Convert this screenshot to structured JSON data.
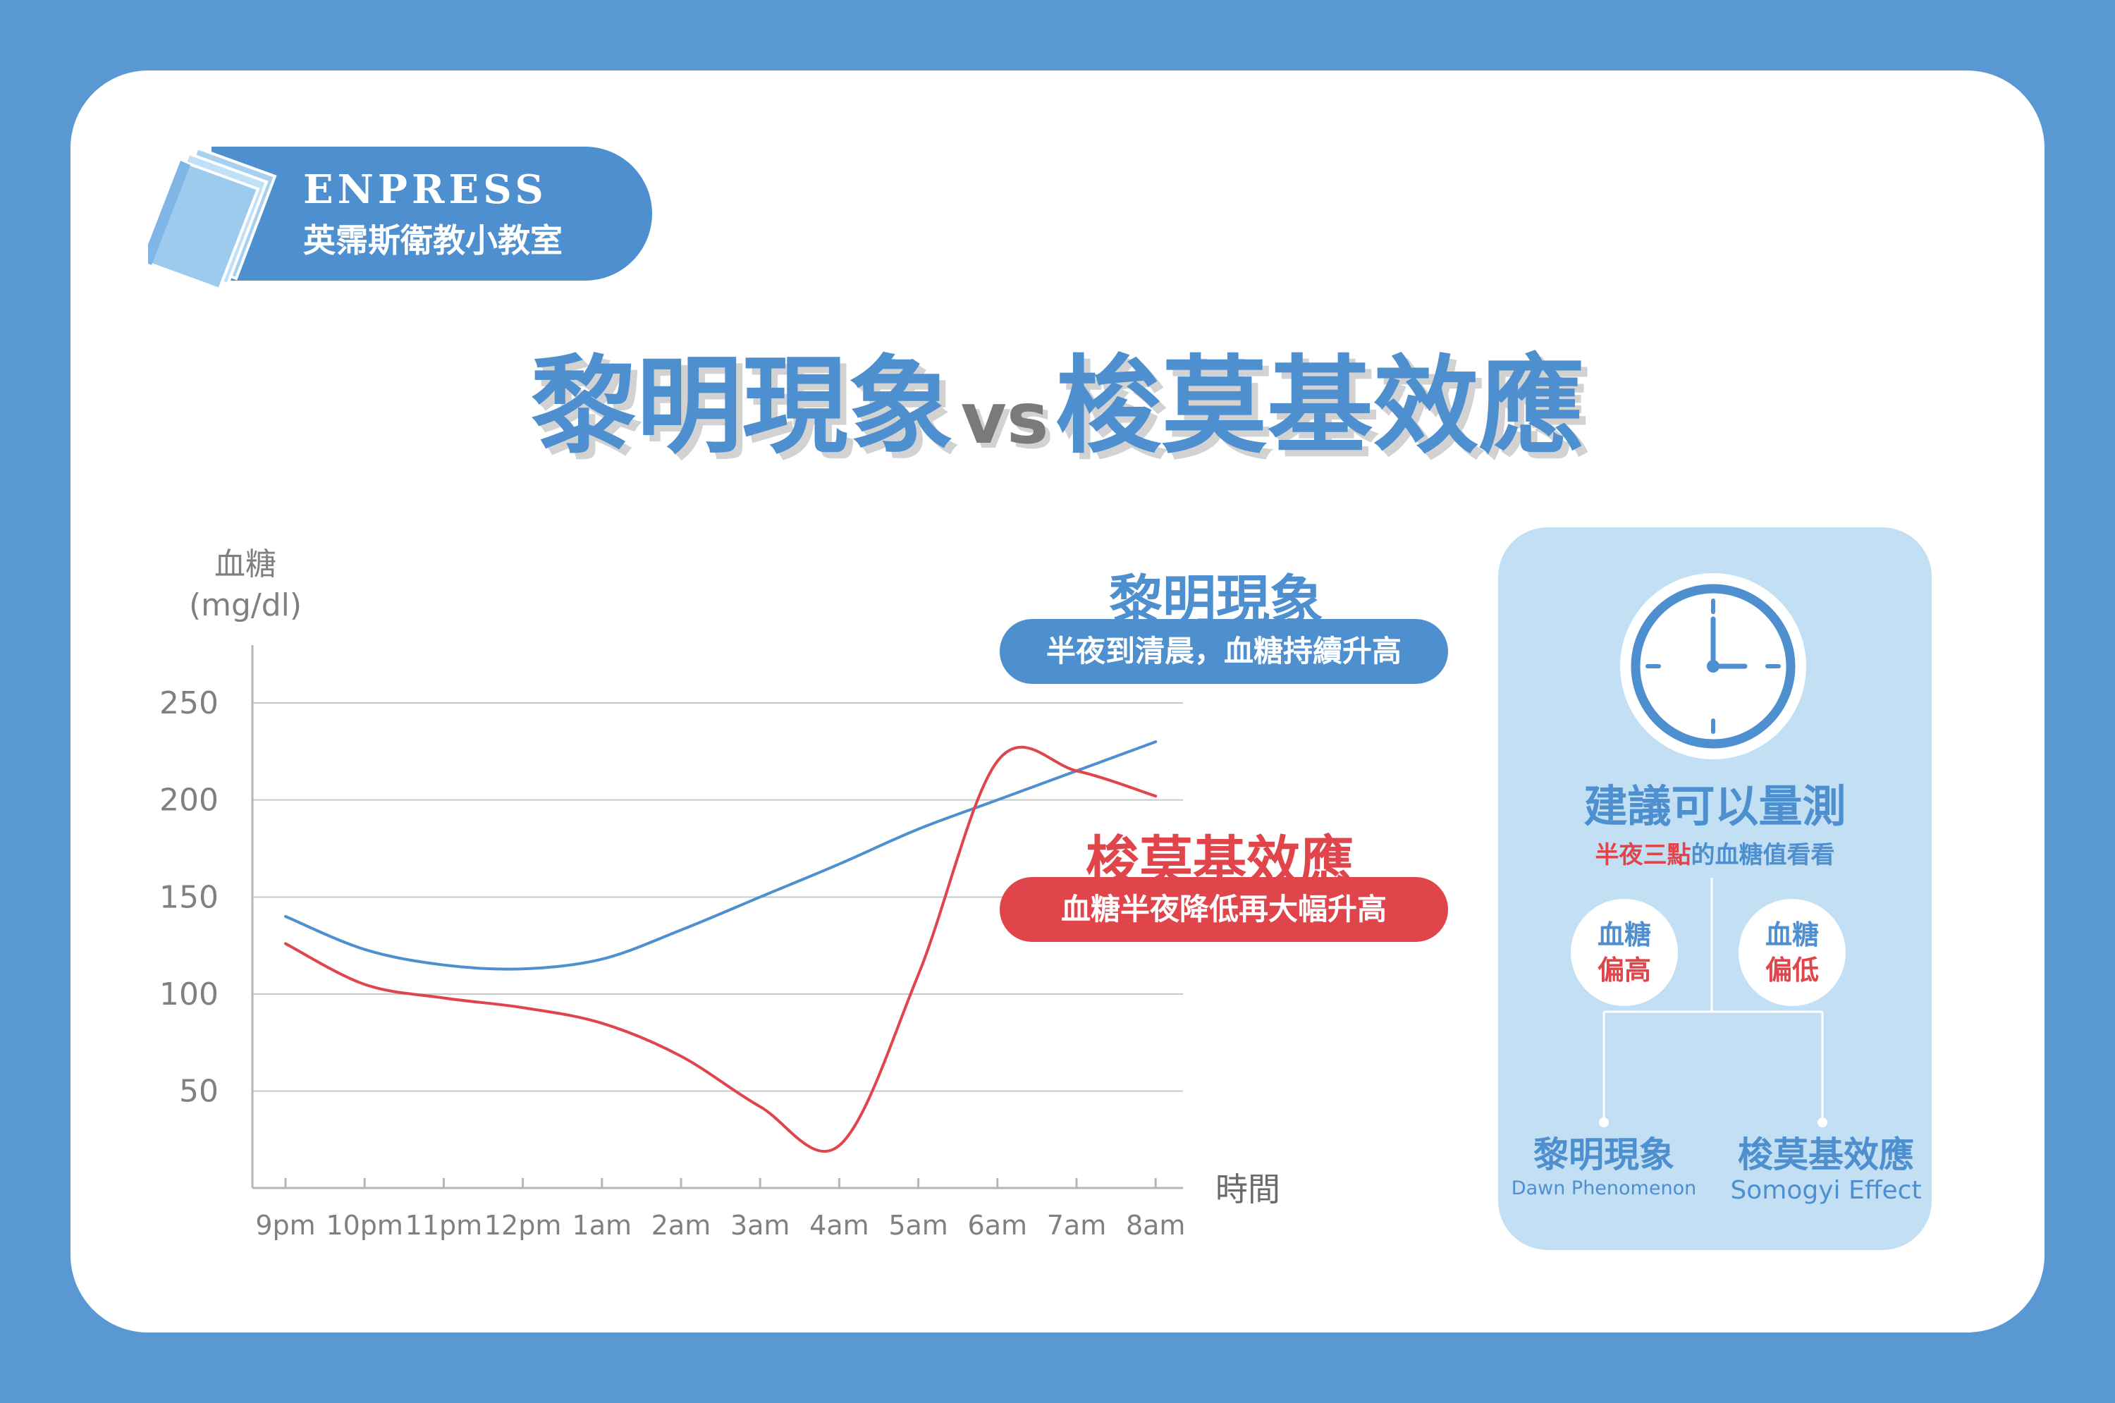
{
  "brand": {
    "name": "ENPRESS",
    "subtitle": "英霈斯衛教小教室",
    "icon": "book-icon"
  },
  "title": {
    "left": "黎明現象",
    "vs": "vs",
    "right": "梭莫基效應"
  },
  "chart_data": {
    "type": "line",
    "title": "",
    "ylabel": "血糖",
    "yunit": "(mg/dl)",
    "xlabel": "時間",
    "categories": [
      "9pm",
      "10pm",
      "11pm",
      "12pm",
      "1am",
      "2am",
      "3am",
      "4am",
      "5am",
      "6am",
      "7am",
      "8am"
    ],
    "yticks": [
      50,
      100,
      150,
      200,
      250
    ],
    "ylim": [
      0,
      280
    ],
    "grid": true,
    "series": [
      {
        "name": "黎明現象",
        "color": "#4d8fcf",
        "values": [
          140,
          123,
          115,
          113,
          118,
          133,
          150,
          167,
          185,
          200,
          215,
          230
        ]
      },
      {
        "name": "梭莫基效應",
        "color": "#e0454c",
        "values": [
          126,
          105,
          98,
          93,
          85,
          68,
          42,
          22,
          110,
          220,
          215,
          202
        ]
      }
    ]
  },
  "callouts": {
    "dawn": {
      "title": "黎明現象",
      "desc": "半夜到清晨，血糖持續升高",
      "color": "#4d8fcf"
    },
    "somogyi": {
      "title": "梭莫基效應",
      "desc": "血糖半夜降低再大幅升高",
      "color": "#e0454c"
    }
  },
  "panel": {
    "icon": "clock-icon",
    "title": "建議可以量測",
    "subtitle_red": "半夜三點",
    "subtitle_blue": "的血糖值看看",
    "high": {
      "top": "血糖",
      "bottom": "偏高"
    },
    "low": {
      "top": "血糖",
      "bottom": "偏低"
    },
    "dawn": {
      "zh": "黎明現象",
      "en": "Dawn Phenomenon"
    },
    "somogyi": {
      "zh": "梭莫基效應",
      "en": "Somogyi Effect"
    }
  }
}
